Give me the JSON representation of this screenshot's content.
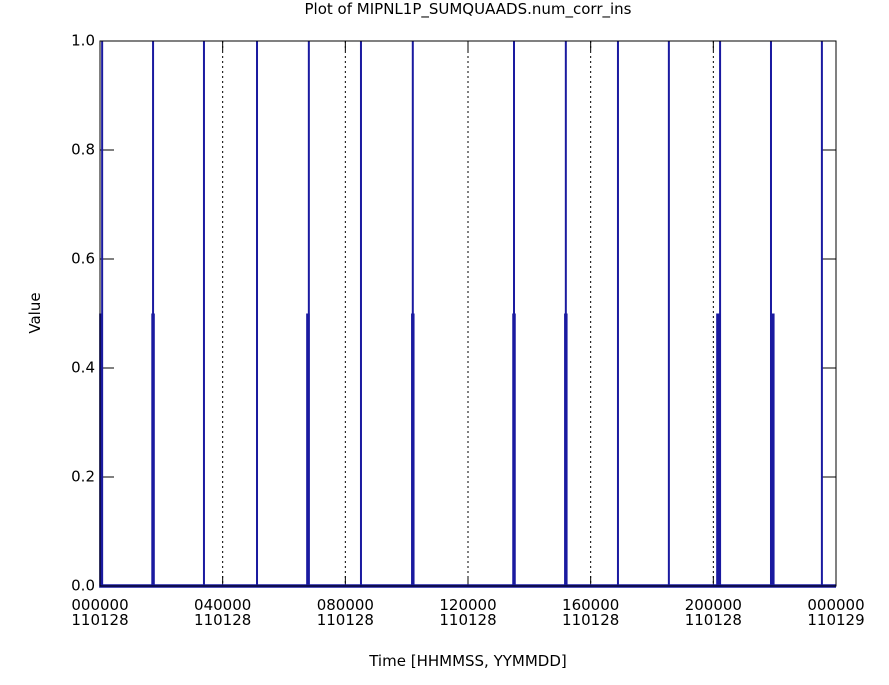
{
  "chart_data": {
    "type": "line",
    "title": "Plot of MIPNL1P_SUMQUAADS.num_corr_ins",
    "xlabel": "Time [HHMMSS, YYMMDD]",
    "ylabel": "Value",
    "xlim": [
      0,
      24
    ],
    "ylim": [
      0,
      1
    ],
    "xticks": [
      {
        "value": 0,
        "label": "000000\n110128"
      },
      {
        "value": 4,
        "label": "040000\n110128"
      },
      {
        "value": 8,
        "label": "080000\n110128"
      },
      {
        "value": 12,
        "label": "120000\n110128"
      },
      {
        "value": 16,
        "label": "160000\n110128"
      },
      {
        "value": 20,
        "label": "200000\n110128"
      },
      {
        "value": 24,
        "label": "000000\n110129"
      }
    ],
    "yticks": [
      {
        "value": 0,
        "label": "0.0"
      },
      0.2,
      0.4,
      0.6,
      0.8,
      {
        "value": 1,
        "label": "1.0"
      }
    ],
    "grid": "x-dotted",
    "series": [
      {
        "color": "#1a1aa0",
        "width": 2,
        "x": [
          0,
          0.07,
          0.07,
          0.07,
          1.73,
          1.73,
          1.73,
          3.39,
          3.39,
          3.39,
          5.12,
          5.12,
          5.12,
          6.81,
          6.81,
          6.81,
          8.51,
          8.51,
          8.51,
          10.2,
          10.2,
          10.2,
          13.5,
          13.5,
          13.5,
          15.19,
          15.19,
          15.19,
          16.89,
          16.89,
          16.89,
          18.55,
          18.55,
          18.55,
          20.22,
          20.22,
          20.22,
          21.88,
          21.88,
          21.88,
          23.54,
          23.54,
          23.54,
          24
        ],
        "values": [
          0,
          0,
          1,
          0,
          0,
          1,
          0,
          0,
          1,
          0,
          0,
          1,
          0,
          0,
          1,
          0,
          0,
          1,
          0,
          0,
          1,
          0,
          0,
          1,
          0,
          0,
          1,
          0,
          0,
          1,
          0,
          0,
          1,
          0,
          0,
          1,
          0,
          0,
          1,
          0,
          0,
          1,
          0,
          0
        ]
      },
      {
        "color": "#1a1aa0",
        "width": 3.5,
        "x": [
          0,
          0.03,
          0.03,
          0.03,
          1.73,
          1.73,
          1.73,
          6.78,
          6.78,
          6.78,
          10.2,
          10.2,
          10.2,
          13.5,
          13.5,
          13.5,
          15.19,
          15.19,
          15.19,
          20.15,
          20.15,
          20.15,
          21.94,
          21.94,
          21.94,
          24
        ],
        "values": [
          0,
          0,
          0.5,
          0,
          0,
          0.5,
          0,
          0,
          0.5,
          0,
          0,
          0.5,
          0,
          0,
          0.5,
          0,
          0,
          0.5,
          0,
          0,
          0.5,
          0,
          0,
          0.5,
          0,
          0
        ]
      }
    ]
  }
}
